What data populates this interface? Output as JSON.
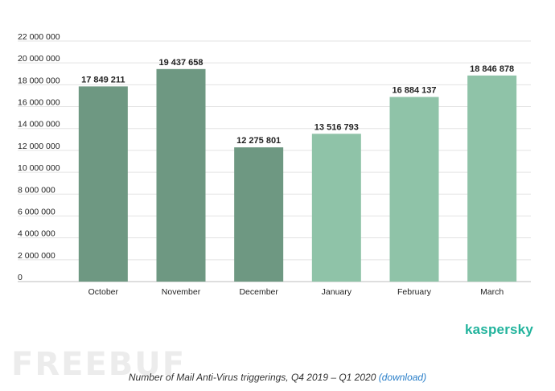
{
  "chart_data": {
    "type": "bar",
    "categories": [
      "October",
      "November",
      "December",
      "January",
      "February",
      "March"
    ],
    "values": [
      17849211,
      19437658,
      12275801,
      13516793,
      16884137,
      18846878
    ],
    "value_labels": [
      "17 849 211",
      "19 437 658",
      "12 275 801",
      "13 516 793",
      "16 884 137",
      "18 846 878"
    ],
    "y_ticks": [
      "0",
      "2 000 000",
      "4 000 000",
      "6 000 000",
      "8 000 000",
      "10 000 000",
      "12 000 000",
      "14 000 000",
      "16 000 000",
      "18 000 000",
      "20 000 000",
      "22 000 000"
    ],
    "ylim": [
      0,
      22000000
    ],
    "grid": true,
    "legend": "none",
    "colors": [
      "#6e9882",
      "#6e9882",
      "#6e9882",
      "#8fc3a8",
      "#8fc3a8",
      "#8fc3a8"
    ]
  },
  "brand": "kaspersky",
  "watermark": "FREEBUF",
  "caption": {
    "text": "Number of Mail Anti-Virus triggerings, Q4 2019 – Q1 2020 ",
    "link": "(download)"
  }
}
